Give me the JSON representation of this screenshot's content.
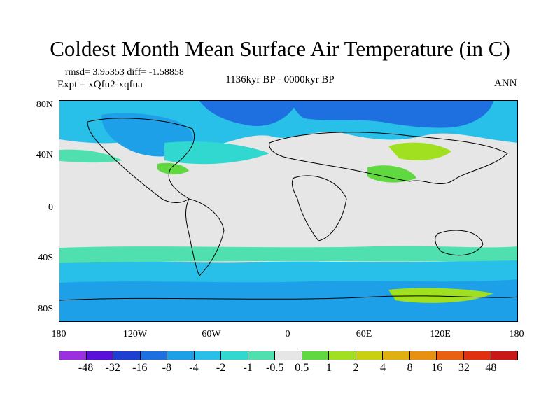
{
  "title": "Coldest Month Mean Surface Air Temperature (in C)",
  "stats": "rmsd= 3.95353 diff= -1.58858",
  "experiment": "Expt = xQfu2-xqfua",
  "period": "1136kyr BP - 0000kyr BP",
  "season": "ANN",
  "lat_labels": [
    "80N",
    "40N",
    "0",
    "40S",
    "80S"
  ],
  "lon_labels": [
    "180",
    "120W",
    "60W",
    "0",
    "60E",
    "120E",
    "180"
  ],
  "colorbar": {
    "labels": [
      "-48",
      "-32",
      "-16",
      "-8",
      "-4",
      "-2",
      "-1",
      "-0.5",
      "0.5",
      "1",
      "2",
      "4",
      "8",
      "16",
      "32",
      "48"
    ],
    "colors": [
      "#9b30e0",
      "#5a10d8",
      "#1e3fd0",
      "#1e6fe0",
      "#1ea0e8",
      "#28c0e8",
      "#30d8d0",
      "#50e0b0",
      "#e6e6e6",
      "#60d840",
      "#a0e020",
      "#c8d010",
      "#e0b010",
      "#e89010",
      "#e86010",
      "#e03010",
      "#c81818"
    ]
  }
}
